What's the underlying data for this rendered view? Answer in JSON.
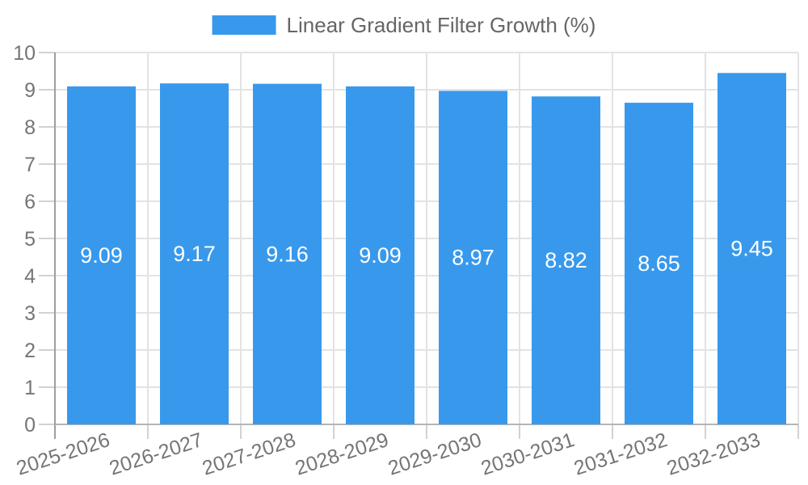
{
  "legend": {
    "label": "Linear Gradient Filter Growth (%)",
    "swatch_color": "#3899ec"
  },
  "chart_data": {
    "type": "bar",
    "title": "Linear Gradient Filter Growth (%)",
    "categories": [
      "2025-2026",
      "2026-2027",
      "2027-2028",
      "2028-2029",
      "2029-2030",
      "2030-2031",
      "2031-2032",
      "2032-2033"
    ],
    "values": [
      9.09,
      9.17,
      9.16,
      9.09,
      8.97,
      8.82,
      8.65,
      9.45
    ],
    "value_labels": [
      "9.09",
      "9.17",
      "9.16",
      "9.09",
      "8.97",
      "8.82",
      "8.65",
      "9.45"
    ],
    "xlabel": "",
    "ylabel": "",
    "ylim": [
      0,
      10
    ],
    "yticks": [
      0,
      1,
      2,
      3,
      4,
      5,
      6,
      7,
      8,
      9,
      10
    ],
    "grid": true,
    "legend_position": "top",
    "x_label_rotation_deg": -18,
    "colors": {
      "bar": "#3899ec",
      "value_label": "#ffffff",
      "axis_text": "#757575",
      "grid_line": "#e3e3e3",
      "tick_mark": "#d2d2d2",
      "y_axis_line": "#9e9e9e",
      "x_axis_line": "#b5b5b5"
    }
  }
}
